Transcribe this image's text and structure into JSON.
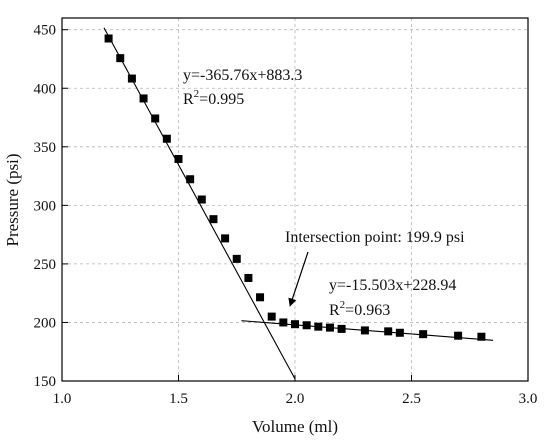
{
  "chart_data": {
    "type": "scatter",
    "xlabel": "Volume (ml)",
    "ylabel": "Pressure (psi)",
    "xlim": [
      1.0,
      3.0
    ],
    "ylim": [
      150,
      460
    ],
    "x_ticks": [
      "1.0",
      "1.5",
      "2.0",
      "2.5",
      "3.0"
    ],
    "y_ticks": [
      "150",
      "200",
      "250",
      "300",
      "350",
      "400",
      "450"
    ],
    "grid": true,
    "series": [
      {
        "marker": "square",
        "color": "#000000",
        "points": [
          [
            1.2,
            442.5
          ],
          [
            1.25,
            425.7
          ],
          [
            1.3,
            408.3
          ],
          [
            1.35,
            391.3
          ],
          [
            1.4,
            374.2
          ],
          [
            1.45,
            356.9
          ],
          [
            1.5,
            339.6
          ],
          [
            1.55,
            322.3
          ],
          [
            1.6,
            305.0
          ],
          [
            1.65,
            288.2
          ],
          [
            1.7,
            271.8
          ],
          [
            1.75,
            254.3
          ],
          [
            1.8,
            238.0
          ],
          [
            1.85,
            221.5
          ],
          [
            1.9,
            205.0
          ],
          [
            1.95,
            200.0
          ],
          [
            2.0,
            198.5
          ],
          [
            2.05,
            197.6
          ],
          [
            2.1,
            196.4
          ],
          [
            2.15,
            195.6
          ],
          [
            2.2,
            194.5
          ],
          [
            2.3,
            193.2
          ],
          [
            2.4,
            192.4
          ],
          [
            2.45,
            191.2
          ],
          [
            2.55,
            190.0
          ],
          [
            2.7,
            188.7
          ],
          [
            2.8,
            187.8
          ]
        ]
      }
    ],
    "fit_lines": [
      {
        "slope": -365.76,
        "intercept": 883.3,
        "x_range": [
          1.18,
          2.0
        ]
      },
      {
        "slope": -15.503,
        "intercept": 228.94,
        "x_range": [
          1.77,
          2.85
        ]
      }
    ],
    "annotations": {
      "fit1_equation": "y=-365.76x+883.3",
      "fit1_r2_label": "R",
      "fit1_r2_exp": "2",
      "fit1_r2_value": "=0.995",
      "intersection_label": "Intersection point: 199.9 psi",
      "fit2_equation": "y=-15.503x+228.94",
      "fit2_r2_label": "R",
      "fit2_r2_exp": "2",
      "fit2_r2_value": "=0.963"
    }
  }
}
